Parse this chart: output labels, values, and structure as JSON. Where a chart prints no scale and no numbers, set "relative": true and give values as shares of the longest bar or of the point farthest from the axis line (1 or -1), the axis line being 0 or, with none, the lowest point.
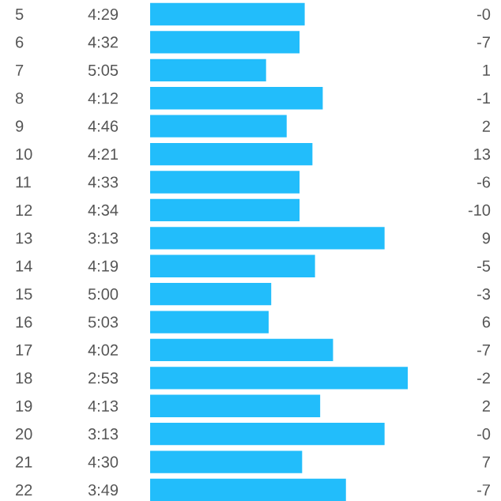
{
  "chart_data": {
    "type": "bar",
    "orientation": "horizontal",
    "relative": true,
    "color": "#22bdfb",
    "categories": [
      "5",
      "6",
      "7",
      "8",
      "9",
      "10",
      "11",
      "12",
      "13",
      "14",
      "15",
      "16",
      "17",
      "18",
      "19",
      "20",
      "21",
      "22"
    ],
    "values": [
      0.6,
      0.58,
      0.45,
      0.67,
      0.53,
      0.63,
      0.58,
      0.58,
      0.91,
      0.64,
      0.47,
      0.46,
      0.71,
      1,
      0.66,
      0.91,
      0.59,
      0.76
    ],
    "annotations": [
      "4:29",
      "4:32",
      "5:05",
      "4:12",
      "4:46",
      "4:21",
      "4:33",
      "4:34",
      "3:13",
      "4:19",
      "5:00",
      "5:03",
      "4:02",
      "2:53",
      "4:13",
      "3:13",
      "4:30",
      "3:49",
      "-0",
      "-7",
      "1",
      "-1",
      "2",
      "13",
      "-6",
      "-10",
      "9",
      "-5",
      "-3",
      "6",
      "-7",
      "-2",
      "2",
      "-0",
      "7",
      "-7"
    ]
  }
}
